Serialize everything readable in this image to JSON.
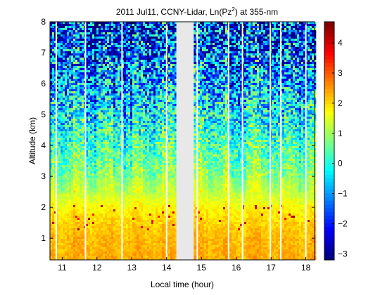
{
  "chart_data": {
    "type": "heatmap",
    "title": "2011 Jul11, CCNY-Lidar, Ln(Pz",
    "title_sup": "2",
    "title_suffix": ") at 355-nm",
    "xlabel": "Local time (hour)",
    "ylabel": "Altitude (km)",
    "xlim": [
      10.65,
      18.25
    ],
    "ylim": [
      0.3,
      8.0
    ],
    "xticks": [
      11,
      12,
      13,
      14,
      15,
      16,
      17,
      18
    ],
    "yticks": [
      1,
      2,
      3,
      4,
      5,
      6,
      7,
      8
    ],
    "colorbar": {
      "range": [
        -3.2,
        4.7
      ],
      "ticks": [
        -3,
        -2,
        -1,
        0,
        1,
        2,
        3,
        4
      ],
      "colormap": "jet"
    },
    "data_gaps": [
      {
        "x_start": 14.28,
        "x_end": 14.78,
        "fill": "#e8e8e8"
      }
    ],
    "white_lines_x": [
      10.83,
      11.67,
      12.72,
      14.0,
      14.88,
      15.78,
      16.18,
      16.98,
      17.28,
      18.0
    ],
    "profile_ln_pz2": [
      {
        "altitude": 0.3,
        "value": 2.4
      },
      {
        "altitude": 1.0,
        "value": 2.3
      },
      {
        "altitude": 1.5,
        "value": 2.1
      },
      {
        "altitude": 2.0,
        "value": 1.8
      },
      {
        "altitude": 2.5,
        "value": 1.3
      },
      {
        "altitude": 3.0,
        "value": 0.9
      },
      {
        "altitude": 4.0,
        "value": 0.4
      },
      {
        "altitude": 5.0,
        "value": -0.2
      },
      {
        "altitude": 6.0,
        "value": -0.8
      },
      {
        "altitude": 7.0,
        "value": -1.4
      },
      {
        "altitude": 8.0,
        "value": -2.0
      }
    ]
  }
}
